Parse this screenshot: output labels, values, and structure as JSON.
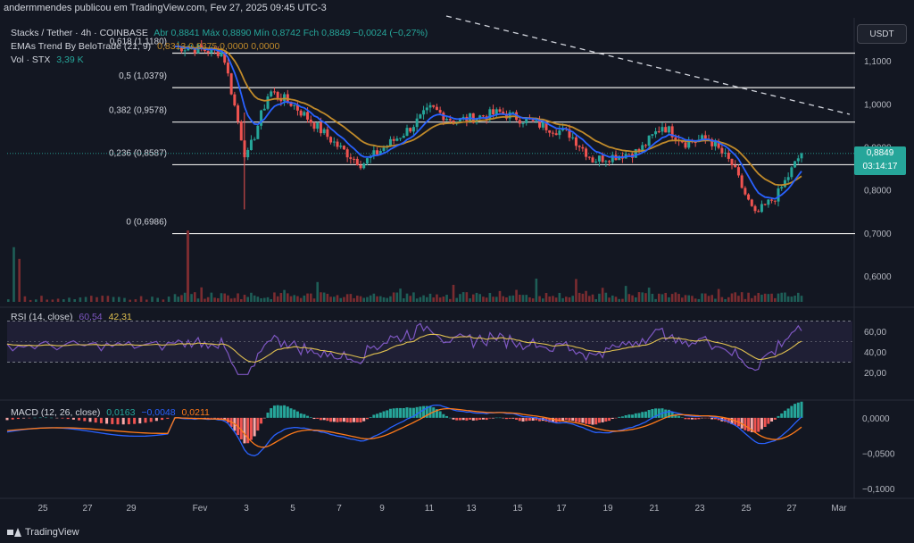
{
  "top_bar": "andermmendes publicou em TradingView.com, Fev 27, 2025 09:45 UTC-3",
  "legend": {
    "symbol": "Stacks / Tether · 4h · COINBASE",
    "ohlc": "Abr 0,8841  Máx 0,8890  Mín 0,8742  Fch 0,8849  −0,0024 (−0,27%)",
    "ema_label": "EMAs Trend By BeloTrade (21, 9)",
    "ema_values": "0,8313  0,8375  0,0000  0,0000",
    "vol_label": "Vol · STX",
    "vol_value": "3,39 K"
  },
  "currency": "USDT",
  "price_tag": {
    "price": "0,8849",
    "countdown": "03:14:17"
  },
  "fib_levels": [
    {
      "label": "0,618 (1,1180)",
      "value": 1.118
    },
    {
      "label": "0,5 (1,0379)",
      "value": 1.0379
    },
    {
      "label": "0,382 (0,9578)",
      "value": 0.9578
    },
    {
      "label": "0,236 (0,8587)",
      "value": 0.8587
    },
    {
      "label": "0 (0,6986)",
      "value": 0.6986
    }
  ],
  "price_axis": [
    "1,1000",
    "1,0000",
    "0,9000",
    "0,8000",
    "0,7000",
    "0,6000"
  ],
  "rsi": {
    "label": "RSI (14, close)",
    "value1": "60,54",
    "value2": "42,31",
    "axis": [
      "60,00",
      "40,00",
      "20,00"
    ]
  },
  "macd": {
    "label": "MACD (12, 26, close)",
    "v1": "0,0163",
    "v2": "−0,0048",
    "v3": "0,0211",
    "axis": [
      "0,0000",
      "−0,0500",
      "−0,1000"
    ]
  },
  "x_labels": [
    "25",
    "27",
    "29",
    "Fev",
    "3",
    "5",
    "7",
    "9",
    "11",
    "13",
    "15",
    "17",
    "19",
    "21",
    "23",
    "25",
    "27",
    "Mar"
  ],
  "footer": "TradingView",
  "colors": {
    "bg": "#131722",
    "up": "#26a69a",
    "down": "#ef5350",
    "ema_fast": "#2962ff",
    "ema_slow": "#c08a2a",
    "rsi": "#7e57c2",
    "rsi_ma": "#e0c050",
    "macd": "#2962ff",
    "signal": "#ff7a1a"
  },
  "chart_data": {
    "type": "candlestick",
    "title": "Stacks / Tether · 4h · COINBASE",
    "ylim": [
      0.54,
      1.2
    ],
    "close_keypoints": [
      {
        "x": "27 Jan",
        "y": 1.16
      },
      {
        "x": "2 Fev",
        "y": 1.12
      },
      {
        "x": "3 Fev",
        "y": 0.87
      },
      {
        "x": "4 Fev",
        "y": 1.03
      },
      {
        "x": "5 Fev",
        "y": 1.0
      },
      {
        "x": "7 Fev",
        "y": 0.9
      },
      {
        "x": "8 Fev",
        "y": 0.86
      },
      {
        "x": "10 Fev",
        "y": 0.94
      },
      {
        "x": "11 Fev",
        "y": 0.99
      },
      {
        "x": "12 Fev",
        "y": 0.96
      },
      {
        "x": "14 Fev",
        "y": 0.98
      },
      {
        "x": "17 Fev",
        "y": 0.93
      },
      {
        "x": "18 Fev",
        "y": 0.87
      },
      {
        "x": "20 Fev",
        "y": 0.89
      },
      {
        "x": "21 Fev",
        "y": 0.95
      },
      {
        "x": "22 Fev",
        "y": 0.91
      },
      {
        "x": "23 Fev",
        "y": 0.92
      },
      {
        "x": "24 Fev",
        "y": 0.86
      },
      {
        "x": "25 Fev",
        "y": 0.74
      },
      {
        "x": "26 Fev",
        "y": 0.79
      },
      {
        "x": "27 Fev",
        "y": 0.8849
      }
    ],
    "rsi_range": [
      0,
      80
    ],
    "rsi_bands": [
      30,
      70
    ],
    "macd_range": [
      -0.11,
      0.02
    ]
  }
}
